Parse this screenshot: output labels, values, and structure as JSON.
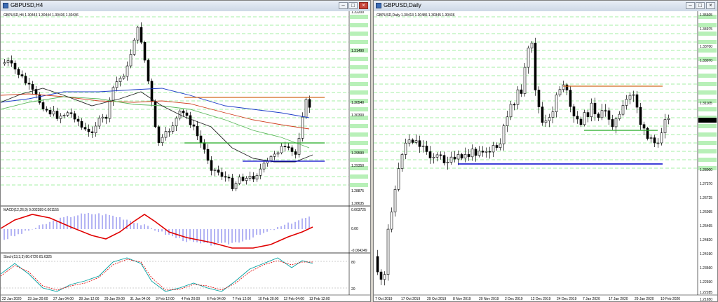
{
  "left_window": {
    "title": "GBPUSD,H4",
    "info": "GBPUSD,H4  1.30443 1.30444 1.30436 1.30436",
    "price_axis": [
      "1.32200",
      "1.31490",
      "1.30540",
      "1.30300",
      "1.29590",
      "1.29350",
      "1.28875",
      "1.28635"
    ],
    "macd": {
      "label": "MACD(12,26,9) 0.002389 0.001155",
      "axis": [
        "0.003725",
        "0.00",
        "-0.004249"
      ]
    },
    "stoch": {
      "label": "Stoch(13,3,3) 80.6726 81.6325",
      "axis": [
        "80",
        "20"
      ]
    },
    "time_axis": [
      "22 Jan 2020",
      "23 Jan 20:00",
      "27 Jan 04:00",
      "28 Jan 12:00",
      "29 Jan 20:00",
      "31 Jan 04:00",
      "3 Feb 12:00",
      "4 Feb 20:00",
      "6 Feb 04:00",
      "7 Feb 12:00",
      "10 Feb 20:00",
      "12 Feb 04:00",
      "13 Feb 12:00"
    ]
  },
  "right_window": {
    "title": "GBPUSD,Daily",
    "info": "GBPUSD,Daily  1.30413 1.30486 1.30345 1.30436",
    "price_axis": [
      "1.35605",
      "1.34975",
      "1.33700",
      "1.33070",
      "1.31165",
      "1.30436",
      "1.28000",
      "1.27370",
      "1.26725",
      "1.26095",
      "1.25465",
      "1.24820",
      "1.24190",
      "1.23560",
      "1.22930",
      "1.22285",
      "1.21650"
    ],
    "time_axis": [
      "7 Oct 2019",
      "17 Oct 2019",
      "29 Oct 2019",
      "8 Nov 2019",
      "20 Nov 2019",
      "2 Dec 2019",
      "12 Dec 2019",
      "24 Dec 2019",
      "7 Jan 2020",
      "17 Jan 2020",
      "29 Jan 2020",
      "10 Feb 2020"
    ]
  },
  "colors": {
    "bg": "#ffffff",
    "bull": "#ffffff",
    "bear": "#000000",
    "level_grid": "#4ee04e",
    "resistance": "#d2691e",
    "support_green": "#22aa22",
    "support_blue": "#0000cc",
    "macd_signal": "#e00000",
    "macd_hist": "#6a6ae8",
    "stoch_main": "#00a0a0",
    "stoch_signal": "#e00000",
    "ma_blue": "#1c3cc8",
    "ma_red": "#d04020",
    "ma_green": "#5bb85b",
    "ma_black": "#202020"
  }
}
